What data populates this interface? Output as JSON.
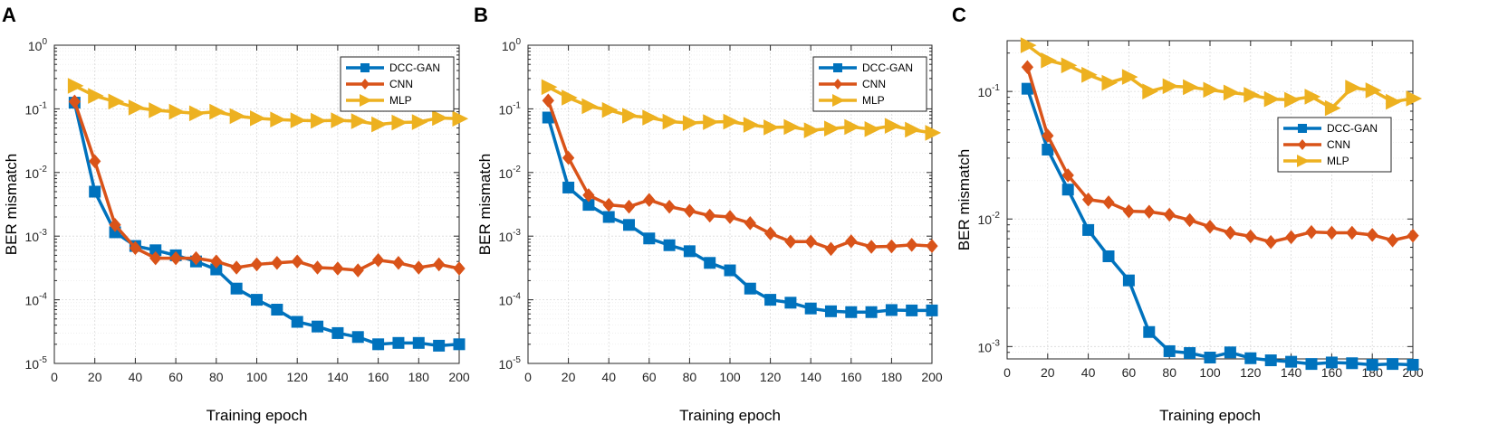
{
  "chart_data": [
    {
      "type": "line",
      "panel": "A",
      "xlabel": "Training epoch",
      "ylabel": "BER mismatch",
      "xlim": [
        0,
        200
      ],
      "ylim": [
        1e-05,
        1
      ],
      "yscale": "log",
      "x_ticks": [
        0,
        20,
        40,
        60,
        80,
        100,
        120,
        140,
        160,
        180,
        200
      ],
      "y_ticks": [
        {
          "mant": "10",
          "exp": "-5",
          "value": 1e-05
        },
        {
          "mant": "10",
          "exp": "-4",
          "value": 0.0001
        },
        {
          "mant": "10",
          "exp": "-3",
          "value": 0.001
        },
        {
          "mant": "10",
          "exp": "-2",
          "value": 0.01
        },
        {
          "mant": "10",
          "exp": "-1",
          "value": 0.1
        },
        {
          "mant": "10",
          "exp": "0",
          "value": 1
        }
      ],
      "grid": true,
      "legend_position": "top-right",
      "x": [
        10,
        20,
        30,
        40,
        50,
        60,
        70,
        80,
        90,
        100,
        110,
        120,
        130,
        140,
        150,
        160,
        170,
        180,
        190,
        200
      ],
      "series": [
        {
          "name": "DCC-GAN",
          "color": "#0072BD",
          "marker": "square",
          "values": [
            0.125,
            0.005,
            0.00115,
            0.0007,
            0.0006,
            0.0005,
            0.0004,
            0.0003,
            0.00015,
            0.0001,
            7e-05,
            4.5e-05,
            3.8e-05,
            3e-05,
            2.6e-05,
            2e-05,
            2.1e-05,
            2.1e-05,
            1.9e-05,
            2e-05
          ]
        },
        {
          "name": "CNN",
          "color": "#D95319",
          "marker": "diamond",
          "values": [
            0.13,
            0.015,
            0.0015,
            0.00065,
            0.00045,
            0.00045,
            0.00045,
            0.0004,
            0.00032,
            0.00036,
            0.00038,
            0.0004,
            0.00032,
            0.00031,
            0.00029,
            0.00042,
            0.00038,
            0.00032,
            0.00036,
            0.00031
          ]
        },
        {
          "name": "MLP",
          "color": "#EDB120",
          "marker": "triangle-right",
          "values": [
            0.23,
            0.16,
            0.13,
            0.105,
            0.095,
            0.09,
            0.085,
            0.09,
            0.077,
            0.071,
            0.068,
            0.066,
            0.065,
            0.066,
            0.064,
            0.057,
            0.061,
            0.062,
            0.072,
            0.07
          ]
        }
      ]
    },
    {
      "type": "line",
      "panel": "B",
      "xlabel": "Training epoch",
      "ylabel": "BER mismatch",
      "xlim": [
        0,
        200
      ],
      "ylim": [
        1e-05,
        1
      ],
      "yscale": "log",
      "x_ticks": [
        0,
        20,
        40,
        60,
        80,
        100,
        120,
        140,
        160,
        180,
        200
      ],
      "y_ticks": [
        {
          "mant": "10",
          "exp": "-5",
          "value": 1e-05
        },
        {
          "mant": "10",
          "exp": "-4",
          "value": 0.0001
        },
        {
          "mant": "10",
          "exp": "-3",
          "value": 0.001
        },
        {
          "mant": "10",
          "exp": "-2",
          "value": 0.01
        },
        {
          "mant": "10",
          "exp": "-1",
          "value": 0.1
        },
        {
          "mant": "10",
          "exp": "0",
          "value": 1
        }
      ],
      "grid": true,
      "legend_position": "top-right",
      "x": [
        10,
        20,
        30,
        40,
        50,
        60,
        70,
        80,
        90,
        100,
        110,
        120,
        130,
        140,
        150,
        160,
        170,
        180,
        190,
        200
      ],
      "series": [
        {
          "name": "DCC-GAN",
          "color": "#0072BD",
          "marker": "square",
          "values": [
            0.073,
            0.0058,
            0.0031,
            0.002,
            0.0015,
            0.00092,
            0.00072,
            0.00058,
            0.00038,
            0.00029,
            0.00015,
            0.0001,
            9e-05,
            7.3e-05,
            6.6e-05,
            6.4e-05,
            6.4e-05,
            6.9e-05,
            6.8e-05,
            6.8e-05
          ]
        },
        {
          "name": "CNN",
          "color": "#D95319",
          "marker": "diamond",
          "values": [
            0.135,
            0.017,
            0.0044,
            0.0031,
            0.0029,
            0.0037,
            0.0029,
            0.0025,
            0.0021,
            0.002,
            0.0016,
            0.0011,
            0.00082,
            0.00082,
            0.00063,
            0.00083,
            0.00068,
            0.00069,
            0.00073,
            0.0007
          ]
        },
        {
          "name": "MLP",
          "color": "#EDB120",
          "marker": "triangle-right",
          "values": [
            0.22,
            0.15,
            0.11,
            0.096,
            0.078,
            0.073,
            0.063,
            0.06,
            0.062,
            0.063,
            0.056,
            0.051,
            0.052,
            0.046,
            0.049,
            0.052,
            0.048,
            0.054,
            0.047,
            0.042
          ]
        }
      ]
    },
    {
      "type": "line",
      "panel": "C",
      "xlabel": "Training epoch",
      "ylabel": "BER mismatch",
      "xlim": [
        0,
        200
      ],
      "ylim": [
        0.0008,
        0.25
      ],
      "yscale": "log",
      "x_ticks": [
        0,
        20,
        40,
        60,
        80,
        100,
        120,
        140,
        160,
        180,
        200
      ],
      "y_ticks": [
        {
          "mant": "10",
          "exp": "-3",
          "value": 0.001
        },
        {
          "mant": "10",
          "exp": "-2",
          "value": 0.01
        },
        {
          "mant": "10",
          "exp": "-1",
          "value": 0.1
        }
      ],
      "grid": true,
      "legend_position": "middle-right",
      "x": [
        10,
        20,
        30,
        40,
        50,
        60,
        70,
        80,
        90,
        100,
        110,
        120,
        130,
        140,
        150,
        160,
        170,
        180,
        190,
        200
      ],
      "series": [
        {
          "name": "DCC-GAN",
          "color": "#0072BD",
          "marker": "square",
          "values": [
            0.105,
            0.035,
            0.017,
            0.0082,
            0.0051,
            0.0033,
            0.0013,
            0.00092,
            0.00089,
            0.00082,
            0.0009,
            0.00081,
            0.00078,
            0.00076,
            0.00073,
            0.00075,
            0.00074,
            0.00072,
            0.00073,
            0.00072
          ]
        },
        {
          "name": "CNN",
          "color": "#D95319",
          "marker": "diamond",
          "values": [
            0.155,
            0.045,
            0.022,
            0.0142,
            0.0135,
            0.0115,
            0.0114,
            0.0108,
            0.0098,
            0.0087,
            0.0078,
            0.0073,
            0.0066,
            0.0072,
            0.0079,
            0.0078,
            0.0078,
            0.0075,
            0.0068,
            0.0074
          ]
        },
        {
          "name": "MLP",
          "color": "#EDB120",
          "marker": "triangle-right",
          "values": [
            0.23,
            0.175,
            0.16,
            0.135,
            0.117,
            0.13,
            0.1,
            0.11,
            0.108,
            0.103,
            0.098,
            0.094,
            0.087,
            0.086,
            0.091,
            0.074,
            0.107,
            0.102,
            0.083,
            0.088
          ]
        }
      ]
    }
  ]
}
